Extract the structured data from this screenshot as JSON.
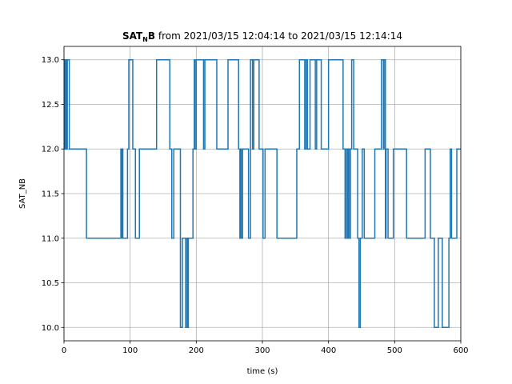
{
  "chart_data": {
    "type": "line",
    "step": true,
    "title_bold_main": "SAT",
    "title_bold_sub": "N",
    "title_bold_tail": "B",
    "title_rest": " from 2021/03/15 12:04:14 to 2021/03/15 12:14:14",
    "xlabel": "time (s)",
    "ylabel": "SAT_NB",
    "xlim": [
      0,
      600
    ],
    "ylim": [
      9.85,
      13.15
    ],
    "grid": true,
    "color": "#1f77b4",
    "xticks": [
      0,
      100,
      200,
      300,
      400,
      500,
      600
    ],
    "xtick_labels": [
      "0",
      "100",
      "200",
      "300",
      "400",
      "500",
      "600"
    ],
    "yticks": [
      10.0,
      10.5,
      11.0,
      11.5,
      12.0,
      12.5,
      13.0
    ],
    "ytick_labels": [
      "10.0",
      "10.5",
      "11.0",
      "11.5",
      "12.0",
      "12.5",
      "13.0"
    ],
    "series": [
      {
        "x": [
          0,
          1,
          2,
          3,
          4,
          5,
          8,
          34,
          86,
          87,
          88,
          89,
          96,
          98,
          104,
          108,
          114,
          140,
          160,
          163,
          166,
          176,
          179,
          184,
          185,
          187,
          188,
          195,
          197,
          198,
          200,
          211,
          213,
          231,
          248,
          264,
          266,
          267,
          268,
          270,
          279,
          282,
          285,
          287,
          295,
          301,
          304,
          322,
          352,
          356,
          364,
          366,
          368,
          372,
          380,
          382,
          389,
          400,
          422,
          425,
          427,
          429,
          430,
          432,
          433,
          435,
          438,
          444,
          446,
          448,
          451,
          454,
          470,
          480,
          483,
          484,
          486,
          487,
          490,
          498,
          518,
          546,
          554,
          560,
          566,
          572,
          582,
          584,
          586,
          594,
          600
        ],
        "y": [
          12,
          13,
          12,
          13,
          12,
          13,
          12,
          11,
          12,
          11,
          12,
          11,
          12,
          13,
          12,
          11,
          12,
          13,
          12,
          11,
          12,
          10,
          11,
          10,
          11,
          10,
          11,
          12,
          13,
          12,
          13,
          12,
          13,
          12,
          13,
          12,
          11,
          12,
          11,
          12,
          11,
          13,
          12,
          13,
          12,
          11,
          12,
          11,
          12,
          13,
          12,
          13,
          12,
          13,
          12,
          13,
          12,
          13,
          12,
          11,
          12,
          11,
          12,
          11,
          12,
          13,
          12,
          11,
          10,
          11,
          12,
          11,
          12,
          13,
          12,
          13,
          11,
          12,
          11,
          12,
          11,
          12,
          11,
          10,
          11,
          10,
          11,
          12,
          11,
          12,
          12
        ]
      }
    ]
  }
}
